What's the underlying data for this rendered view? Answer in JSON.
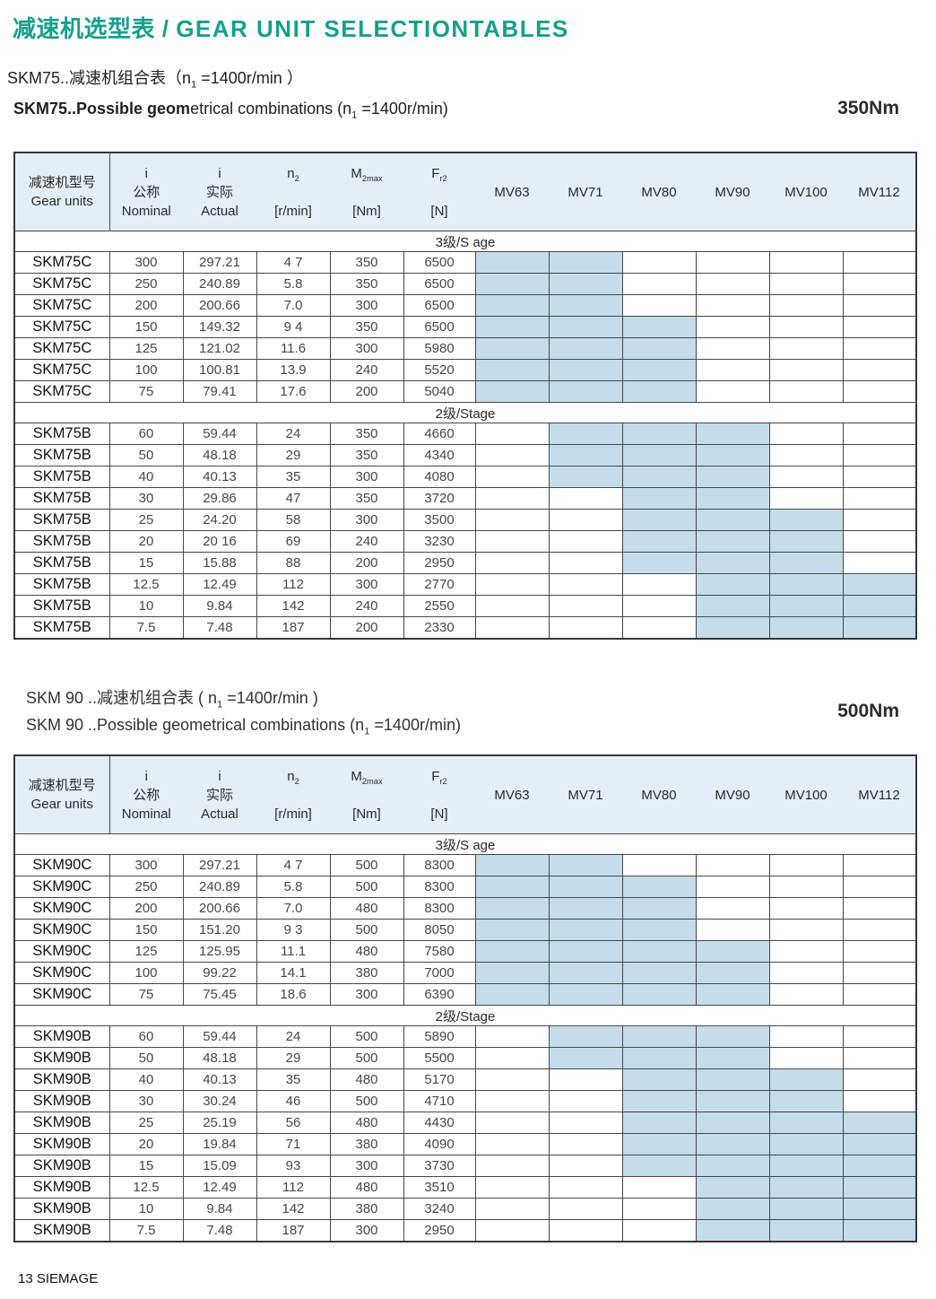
{
  "page": {
    "main_title_zh": "减速机选型表",
    "main_title_sep": " / ",
    "main_title_en": "GEAR UNIT SELECTIONTABLES",
    "footer_text": "13 SIEMAGE"
  },
  "colors": {
    "accent_teal": "#16a08c",
    "table_header_bg": "#e4eef6",
    "mv_shaded_cell": "#c5dcea",
    "grid_line": "#44484c"
  },
  "header_cols": {
    "gear_zh": "减速机型号",
    "gear_en": "Gear units",
    "i_nom": {
      "sym": "i",
      "zh": "公称",
      "en": "Nominal"
    },
    "i_act": {
      "sym": "i",
      "zh": "实际",
      "en": "Actual"
    },
    "n2": {
      "sym": "n",
      "sub": "2",
      "unit": "[r/min]"
    },
    "m2max": {
      "sym": "M",
      "sub": "2max",
      "unit": "[Nm]"
    },
    "fr2": {
      "sym": "F",
      "sub": "r2",
      "unit": "[N]"
    },
    "mv": [
      "MV63",
      "MV71",
      "MV80",
      "MV90",
      "MV100",
      "MV112"
    ]
  },
  "sections_headings": {
    "skm75": {
      "zh_pre": "SKM75..减速机组合表（n",
      "zh_sub": "1",
      "zh_post": " =1400r/min ）",
      "en_bold": "SKM75..Possible geom",
      "en_reg_pre": "etrical combinations  (n",
      "en_sub": "1",
      "en_reg_post": " =1400r/min)",
      "torque": "350Nm"
    },
    "skm90": {
      "zh_pre": "SKM 90 ..减速机组合表 ( n",
      "zh_sub": "1",
      "zh_post": " =1400r/min )",
      "en_pre": "SKM 90 ..Possible geometrical combinations (n",
      "en_sub": "1",
      "en_post": " =1400r/min)",
      "torque": "500Nm"
    }
  },
  "tables": [
    {
      "id": "skm75",
      "sections": [
        {
          "stage_label": "3级/S age",
          "rows": [
            {
              "model": "SKM75C",
              "i_nominal": "300",
              "i_actual": "297.21",
              "n2": "4 7",
              "m2max": "350",
              "fr2": "6500",
              "mv": [
                1,
                1,
                0,
                0,
                0,
                0
              ]
            },
            {
              "model": "SKM75C",
              "i_nominal": "250",
              "i_actual": "240.89",
              "n2": "5.8",
              "m2max": "350",
              "fr2": "6500",
              "mv": [
                1,
                1,
                0,
                0,
                0,
                0
              ]
            },
            {
              "model": "SKM75C",
              "i_nominal": "200",
              "i_actual": "200.66",
              "n2": "7.0",
              "m2max": "300",
              "fr2": "6500",
              "mv": [
                1,
                1,
                0,
                0,
                0,
                0
              ]
            },
            {
              "model": "SKM75C",
              "i_nominal": "150",
              "i_actual": "149.32",
              "n2": "9 4",
              "m2max": "350",
              "fr2": "6500",
              "mv": [
                1,
                1,
                1,
                0,
                0,
                0
              ]
            },
            {
              "model": "SKM75C",
              "i_nominal": "125",
              "i_actual": "121.02",
              "n2": "11.6",
              "m2max": "300",
              "fr2": "5980",
              "mv": [
                1,
                1,
                1,
                0,
                0,
                0
              ]
            },
            {
              "model": "SKM75C",
              "i_nominal": "100",
              "i_actual": "100.81",
              "n2": "13.9",
              "m2max": "240",
              "fr2": "5520",
              "mv": [
                1,
                1,
                1,
                0,
                0,
                0
              ]
            },
            {
              "model": "SKM75C",
              "i_nominal": "75",
              "i_actual": "79.41",
              "n2": "17.6",
              "m2max": "200",
              "fr2": "5040",
              "mv": [
                1,
                1,
                1,
                0,
                0,
                0
              ]
            }
          ]
        },
        {
          "stage_label": "2级/Stage",
          "rows": [
            {
              "model": "SKM75B",
              "i_nominal": "60",
              "i_actual": "59.44",
              "n2": "24",
              "m2max": "350",
              "fr2": "4660",
              "mv": [
                0,
                1,
                1,
                1,
                0,
                0
              ]
            },
            {
              "model": "SKM75B",
              "i_nominal": "50",
              "i_actual": "48.18",
              "n2": "29",
              "m2max": "350",
              "fr2": "4340",
              "mv": [
                0,
                1,
                1,
                1,
                0,
                0
              ]
            },
            {
              "model": "SKM75B",
              "i_nominal": "40",
              "i_actual": "40.13",
              "n2": "35",
              "m2max": "300",
              "fr2": "4080",
              "mv": [
                0,
                1,
                1,
                1,
                0,
                0
              ]
            },
            {
              "model": "SKM75B",
              "i_nominal": "30",
              "i_actual": "29.86",
              "n2": "47",
              "m2max": "350",
              "fr2": "3720",
              "mv": [
                0,
                0,
                1,
                1,
                0,
                0
              ]
            },
            {
              "model": "SKM75B",
              "i_nominal": "25",
              "i_actual": "24.20",
              "n2": "58",
              "m2max": "300",
              "fr2": "3500",
              "mv": [
                0,
                0,
                1,
                1,
                1,
                0
              ]
            },
            {
              "model": "SKM75B",
              "i_nominal": "20",
              "i_actual": "20 16",
              "n2": "69",
              "m2max": "240",
              "fr2": "3230",
              "mv": [
                0,
                0,
                1,
                1,
                1,
                0
              ]
            },
            {
              "model": "SKM75B",
              "i_nominal": "15",
              "i_actual": "15.88",
              "n2": "88",
              "m2max": "200",
              "fr2": "2950",
              "mv": [
                0,
                0,
                1,
                1,
                1,
                0
              ]
            },
            {
              "model": "SKM75B",
              "i_nominal": "12.5",
              "i_actual": "12.49",
              "n2": "112",
              "m2max": "300",
              "fr2": "2770",
              "mv": [
                0,
                0,
                0,
                1,
                1,
                1
              ]
            },
            {
              "model": "SKM75B",
              "i_nominal": "10",
              "i_actual": "9.84",
              "n2": "142",
              "m2max": "240",
              "fr2": "2550",
              "mv": [
                0,
                0,
                0,
                1,
                1,
                1
              ]
            },
            {
              "model": "SKM75B",
              "i_nominal": "7.5",
              "i_actual": "7.48",
              "n2": "187",
              "m2max": "200",
              "fr2": "2330",
              "mv": [
                0,
                0,
                0,
                1,
                1,
                1
              ]
            }
          ]
        }
      ]
    },
    {
      "id": "skm90",
      "sections": [
        {
          "stage_label": "3级/S age",
          "rows": [
            {
              "model": "SKM90C",
              "i_nominal": "300",
              "i_actual": "297.21",
              "n2": "4 7",
              "m2max": "500",
              "fr2": "8300",
              "mv": [
                1,
                1,
                0,
                0,
                0,
                0
              ]
            },
            {
              "model": "SKM90C",
              "i_nominal": "250",
              "i_actual": "240.89",
              "n2": "5.8",
              "m2max": "500",
              "fr2": "8300",
              "mv": [
                1,
                1,
                1,
                0,
                0,
                0
              ]
            },
            {
              "model": "SKM90C",
              "i_nominal": "200",
              "i_actual": "200.66",
              "n2": "7.0",
              "m2max": "480",
              "fr2": "8300",
              "mv": [
                1,
                1,
                1,
                0,
                0,
                0
              ]
            },
            {
              "model": "SKM90C",
              "i_nominal": "150",
              "i_actual": "151.20",
              "n2": "9 3",
              "m2max": "500",
              "fr2": "8050",
              "mv": [
                1,
                1,
                1,
                0,
                0,
                0
              ]
            },
            {
              "model": "SKM90C",
              "i_nominal": "125",
              "i_actual": "125.95",
              "n2": "11.1",
              "m2max": "480",
              "fr2": "7580",
              "mv": [
                1,
                1,
                1,
                1,
                0,
                0
              ]
            },
            {
              "model": "SKM90C",
              "i_nominal": "100",
              "i_actual": "99.22",
              "n2": "14.1",
              "m2max": "380",
              "fr2": "7000",
              "mv": [
                1,
                1,
                1,
                1,
                0,
                0
              ]
            },
            {
              "model": "SKM90C",
              "i_nominal": "75",
              "i_actual": "75.45",
              "n2": "18.6",
              "m2max": "300",
              "fr2": "6390",
              "mv": [
                1,
                1,
                1,
                1,
                0,
                0
              ]
            }
          ]
        },
        {
          "stage_label": "2级/Stage",
          "rows": [
            {
              "model": "SKM90B",
              "i_nominal": "60",
              "i_actual": "59.44",
              "n2": "24",
              "m2max": "500",
              "fr2": "5890",
              "mv": [
                0,
                1,
                1,
                1,
                0,
                0
              ]
            },
            {
              "model": "SKM90B",
              "i_nominal": "50",
              "i_actual": "48.18",
              "n2": "29",
              "m2max": "500",
              "fr2": "5500",
              "mv": [
                0,
                1,
                1,
                1,
                0,
                0
              ]
            },
            {
              "model": "SKM90B",
              "i_nominal": "40",
              "i_actual": "40.13",
              "n2": "35",
              "m2max": "480",
              "fr2": "5170",
              "mv": [
                0,
                0,
                1,
                1,
                1,
                0
              ]
            },
            {
              "model": "SKM90B",
              "i_nominal": "30",
              "i_actual": "30.24",
              "n2": "46",
              "m2max": "500",
              "fr2": "4710",
              "mv": [
                0,
                0,
                1,
                1,
                1,
                0
              ]
            },
            {
              "model": "SKM90B",
              "i_nominal": "25",
              "i_actual": "25.19",
              "n2": "56",
              "m2max": "480",
              "fr2": "4430",
              "mv": [
                0,
                0,
                1,
                1,
                1,
                1
              ]
            },
            {
              "model": "SKM90B",
              "i_nominal": "20",
              "i_actual": "19.84",
              "n2": "71",
              "m2max": "380",
              "fr2": "4090",
              "mv": [
                0,
                0,
                1,
                1,
                1,
                1
              ]
            },
            {
              "model": "SKM90B",
              "i_nominal": "15",
              "i_actual": "15.09",
              "n2": "93",
              "m2max": "300",
              "fr2": "3730",
              "mv": [
                0,
                0,
                1,
                1,
                1,
                1
              ]
            },
            {
              "model": "SKM90B",
              "i_nominal": "12.5",
              "i_actual": "12.49",
              "n2": "112",
              "m2max": "480",
              "fr2": "3510",
              "mv": [
                0,
                0,
                0,
                1,
                1,
                1
              ]
            },
            {
              "model": "SKM90B",
              "i_nominal": "10",
              "i_actual": "9.84",
              "n2": "142",
              "m2max": "380",
              "fr2": "3240",
              "mv": [
                0,
                0,
                0,
                1,
                1,
                1
              ]
            },
            {
              "model": "SKM90B",
              "i_nominal": "7.5",
              "i_actual": "7.48",
              "n2": "187",
              "m2max": "300",
              "fr2": "2950",
              "mv": [
                0,
                0,
                0,
                1,
                1,
                1
              ]
            }
          ]
        }
      ]
    }
  ]
}
